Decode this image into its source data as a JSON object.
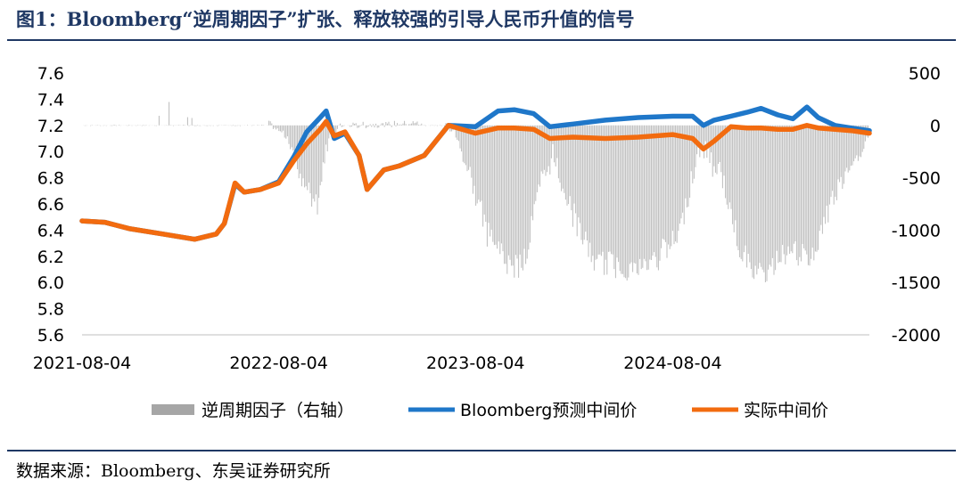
{
  "figure": {
    "title": "图1：Bloomberg“逆周期因子”扩张、释放较强的引导人民币升值的信号",
    "source": "数据来源：Bloomberg、东吴证券研究所"
  },
  "colors": {
    "title": "#1f3864",
    "bars": "#a6a6a6",
    "bloomberg": "#1f77c9",
    "actual": "#f26b0f"
  },
  "chart_data": {
    "type": "line",
    "x_ticks": [
      "2021-08-04",
      "2022-08-04",
      "2023-08-04",
      "2024-08-04"
    ],
    "x_range": [
      "2021-08-04",
      "2025-08-04"
    ],
    "y_left": {
      "ticks": [
        "7.6",
        "7.4",
        "7.2",
        "7.0",
        "6.8",
        "6.6",
        "6.4",
        "6.2",
        "6.0",
        "5.8",
        "5.6"
      ],
      "ylim": [
        5.6,
        7.6
      ]
    },
    "y_right": {
      "ticks": [
        "500",
        "0",
        "-500",
        "-1000",
        "-1500",
        "-2000"
      ],
      "ylim": [
        -2000,
        500
      ]
    },
    "legend": [
      "逆周期因子（右轴）",
      "Bloomberg预测中间价",
      "实际中间价"
    ],
    "series": [
      {
        "name": "Bloomberg预测中间价",
        "axis": "left",
        "points": [
          [
            "2021-08-04",
            6.47
          ],
          [
            "2021-09-15",
            6.46
          ],
          [
            "2021-11-01",
            6.41
          ],
          [
            "2022-01-01",
            6.37
          ],
          [
            "2022-03-01",
            6.33
          ],
          [
            "2022-04-10",
            6.37
          ],
          [
            "2022-04-25",
            6.45
          ],
          [
            "2022-05-15",
            6.75
          ],
          [
            "2022-06-01",
            6.69
          ],
          [
            "2022-07-01",
            6.71
          ],
          [
            "2022-08-04",
            6.77
          ],
          [
            "2022-09-01",
            6.96
          ],
          [
            "2022-09-25",
            7.15
          ],
          [
            "2022-10-20",
            7.26
          ],
          [
            "2022-10-31",
            7.31
          ],
          [
            "2022-11-15",
            7.1
          ],
          [
            "2022-12-05",
            7.14
          ],
          [
            "2022-12-31",
            6.97
          ],
          [
            "2023-01-15",
            6.71
          ],
          [
            "2023-02-15",
            6.86
          ],
          [
            "2023-03-15",
            6.89
          ],
          [
            "2023-05-01",
            6.97
          ],
          [
            "2023-06-15",
            7.2
          ],
          [
            "2023-08-04",
            7.19
          ],
          [
            "2023-09-15",
            7.31
          ],
          [
            "2023-10-15",
            7.32
          ],
          [
            "2023-11-20",
            7.29
          ],
          [
            "2023-12-20",
            7.19
          ],
          [
            "2024-02-01",
            7.21
          ],
          [
            "2024-04-01",
            7.24
          ],
          [
            "2024-06-01",
            7.26
          ],
          [
            "2024-08-04",
            7.27
          ],
          [
            "2024-09-10",
            7.27
          ],
          [
            "2024-09-30",
            7.2
          ],
          [
            "2024-10-20",
            7.24
          ],
          [
            "2024-11-20",
            7.27
          ],
          [
            "2024-12-20",
            7.3
          ],
          [
            "2025-01-15",
            7.33
          ],
          [
            "2025-02-15",
            7.28
          ],
          [
            "2025-03-15",
            7.25
          ],
          [
            "2025-04-10",
            7.34
          ],
          [
            "2025-05-01",
            7.26
          ],
          [
            "2025-06-01",
            7.2
          ],
          [
            "2025-07-01",
            7.18
          ],
          [
            "2025-08-04",
            7.16
          ]
        ]
      },
      {
        "name": "实际中间价",
        "axis": "left",
        "points": [
          [
            "2021-08-04",
            6.47
          ],
          [
            "2021-09-15",
            6.46
          ],
          [
            "2021-11-01",
            6.41
          ],
          [
            "2022-01-01",
            6.37
          ],
          [
            "2022-03-01",
            6.33
          ],
          [
            "2022-04-10",
            6.37
          ],
          [
            "2022-04-25",
            6.45
          ],
          [
            "2022-05-15",
            6.76
          ],
          [
            "2022-06-01",
            6.69
          ],
          [
            "2022-07-01",
            6.71
          ],
          [
            "2022-08-04",
            6.76
          ],
          [
            "2022-09-01",
            6.93
          ],
          [
            "2022-09-25",
            7.06
          ],
          [
            "2022-10-20",
            7.17
          ],
          [
            "2022-10-31",
            7.23
          ],
          [
            "2022-11-15",
            7.12
          ],
          [
            "2022-12-05",
            7.15
          ],
          [
            "2022-12-31",
            6.97
          ],
          [
            "2023-01-15",
            6.71
          ],
          [
            "2023-02-15",
            6.86
          ],
          [
            "2023-03-15",
            6.89
          ],
          [
            "2023-05-01",
            6.97
          ],
          [
            "2023-06-15",
            7.2
          ],
          [
            "2023-08-04",
            7.14
          ],
          [
            "2023-09-15",
            7.18
          ],
          [
            "2023-10-15",
            7.18
          ],
          [
            "2023-11-20",
            7.17
          ],
          [
            "2023-12-20",
            7.1
          ],
          [
            "2024-02-01",
            7.11
          ],
          [
            "2024-04-01",
            7.1
          ],
          [
            "2024-06-01",
            7.11
          ],
          [
            "2024-08-04",
            7.13
          ],
          [
            "2024-09-10",
            7.1
          ],
          [
            "2024-09-30",
            7.02
          ],
          [
            "2024-10-20",
            7.08
          ],
          [
            "2024-11-20",
            7.19
          ],
          [
            "2024-12-20",
            7.18
          ],
          [
            "2025-01-15",
            7.18
          ],
          [
            "2025-02-15",
            7.17
          ],
          [
            "2025-03-15",
            7.17
          ],
          [
            "2025-04-10",
            7.2
          ],
          [
            "2025-05-01",
            7.18
          ],
          [
            "2025-06-01",
            7.17
          ],
          [
            "2025-07-01",
            7.16
          ],
          [
            "2025-08-04",
            7.14
          ]
        ]
      }
    ]
  }
}
